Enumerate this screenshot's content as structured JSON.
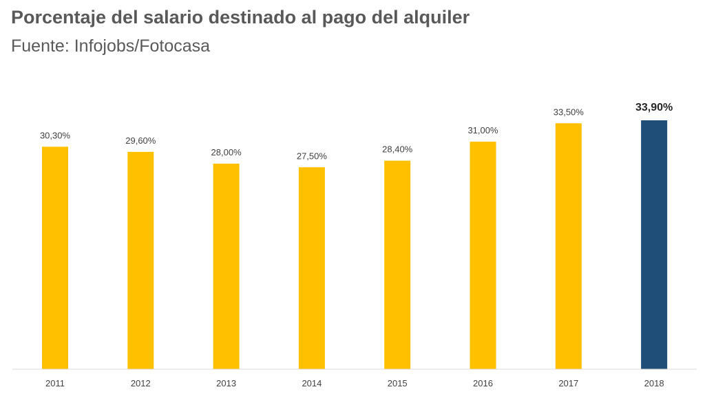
{
  "chart_data": {
    "type": "bar",
    "title": "Porcentaje del salario destinado al pago del alquiler",
    "subtitle": "Fuente: Infojobs/Fotocasa",
    "categories": [
      "2011",
      "2012",
      "2013",
      "2014",
      "2015",
      "2016",
      "2017",
      "2018"
    ],
    "values": [
      30.3,
      29.6,
      28.0,
      27.5,
      28.4,
      31.0,
      33.5,
      33.9
    ],
    "data_labels": [
      "30,30%",
      "29,60%",
      "28,00%",
      "27,50%",
      "28,40%",
      "31,00%",
      "33,50%",
      "33,90%"
    ],
    "ylim": [
      0,
      33.9
    ],
    "grid": false,
    "highlighted_category": "2018",
    "colors": {
      "bar": "#FFC000",
      "highlight": "#1F4E79",
      "axis": "#D9D9D9",
      "title": "#595959"
    }
  }
}
